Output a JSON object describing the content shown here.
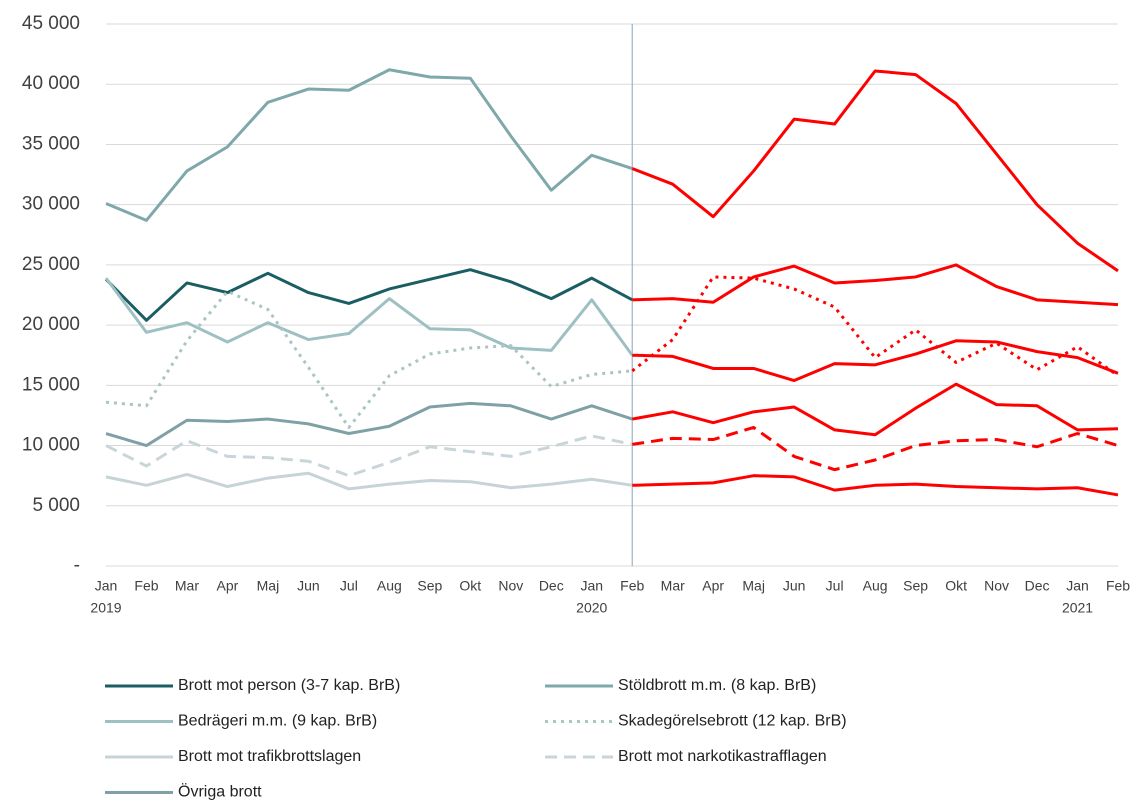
{
  "chart_data": {
    "type": "line",
    "categories": [
      "Jan",
      "Feb",
      "Mar",
      "Apr",
      "Maj",
      "Jun",
      "Jul",
      "Aug",
      "Sep",
      "Okt",
      "Nov",
      "Dec",
      "Jan",
      "Feb",
      "Mar",
      "Apr",
      "Maj",
      "Jun",
      "Jul",
      "Aug",
      "Sep",
      "Okt",
      "Nov",
      "Dec",
      "Jan",
      "Feb"
    ],
    "x_group_labels": [
      "2019",
      null,
      null,
      null,
      null,
      null,
      null,
      null,
      null,
      null,
      null,
      null,
      "2020",
      null,
      null,
      null,
      null,
      null,
      null,
      null,
      null,
      null,
      null,
      null,
      "2021",
      null
    ],
    "ylim": [
      0,
      45000
    ],
    "yticks": [
      {
        "value": 0,
        "label": "-"
      },
      {
        "value": 5000,
        "label": "5 000"
      },
      {
        "value": 10000,
        "label": "10 000"
      },
      {
        "value": 15000,
        "label": "15 000"
      },
      {
        "value": 20000,
        "label": "20 000"
      },
      {
        "value": 25000,
        "label": "25 000"
      },
      {
        "value": 30000,
        "label": "30 000"
      },
      {
        "value": 35000,
        "label": "35 000"
      },
      {
        "value": 40000,
        "label": "40 000"
      },
      {
        "value": 45000,
        "label": "45 000"
      }
    ],
    "grid": true,
    "highlight_color": "#ff0000",
    "highlight_from": 13,
    "series": [
      {
        "name": "Brott mot person (3-7 kap. BrB)",
        "color": "#1a5e63",
        "dash": "solid",
        "values": [
          23800,
          20400,
          23500,
          22700,
          24300,
          22700,
          21800,
          23000,
          23800,
          24600,
          23600,
          22200,
          23900,
          22100,
          22200,
          21900,
          24000,
          24900,
          23500,
          23700,
          24000,
          25000,
          23200,
          22100,
          21900,
          21700
        ]
      },
      {
        "name": "Stöldbrott m.m. (8 kap. BrB)",
        "color": "#7fa8ab",
        "dash": "solid",
        "values": [
          30100,
          28700,
          32800,
          34800,
          38500,
          39600,
          39500,
          41200,
          40600,
          40500,
          35700,
          31200,
          34100,
          33000,
          31700,
          29000,
          32800,
          37100,
          36700,
          41100,
          40800,
          38400,
          34200,
          30000,
          26800,
          24500
        ]
      },
      {
        "name": "Bedrägeri m.m. (9 kap. BrB)",
        "color": "#9fc0c2",
        "dash": "solid",
        "values": [
          23900,
          19400,
          20200,
          18600,
          20200,
          18800,
          19300,
          22200,
          19700,
          19600,
          18100,
          17900,
          22100,
          17500,
          17400,
          16400,
          16400,
          15400,
          16800,
          16700,
          17600,
          18700,
          18600,
          17800,
          17300,
          16000
        ]
      },
      {
        "name": "Skadegörelsebrott (12 kap. BrB)",
        "color": "#a9c6c4",
        "dash": "dotted",
        "values": [
          13600,
          13300,
          18700,
          22800,
          21300,
          16500,
          11500,
          15800,
          17600,
          18100,
          18300,
          14900,
          15900,
          16200,
          18800,
          24000,
          23900,
          23000,
          21500,
          17300,
          19600,
          16900,
          18500,
          16300,
          18200,
          15800
        ]
      },
      {
        "name": "Brott mot trafikbrottslagen",
        "color": "#c7d3d6",
        "dash": "solid",
        "values": [
          7400,
          6700,
          7600,
          6600,
          7300,
          7700,
          6400,
          6800,
          7100,
          7000,
          6500,
          6800,
          7200,
          6700,
          6800,
          6900,
          7500,
          7400,
          6300,
          6700,
          6800,
          6600,
          6500,
          6400,
          6500,
          5900
        ]
      },
      {
        "name": "Brott mot narkotikastrafflagen",
        "color": "#c9d5d8",
        "dash": "dashed",
        "values": [
          10000,
          8300,
          10400,
          9100,
          9000,
          8700,
          7500,
          8600,
          9900,
          9500,
          9100,
          9900,
          10800,
          10100,
          10600,
          10500,
          11500,
          9100,
          8000,
          8800,
          10000,
          10400,
          10500,
          9900,
          11000,
          10000
        ]
      },
      {
        "name": "Övriga brott",
        "color": "#7fa1a6",
        "dash": "solid",
        "values": [
          11000,
          10000,
          12100,
          12000,
          12200,
          11800,
          11000,
          11600,
          13200,
          13500,
          13300,
          12200,
          13300,
          12200,
          12800,
          11900,
          12800,
          13200,
          11300,
          10900,
          13100,
          15100,
          13400,
          13300,
          11300,
          11400
        ]
      }
    ]
  }
}
